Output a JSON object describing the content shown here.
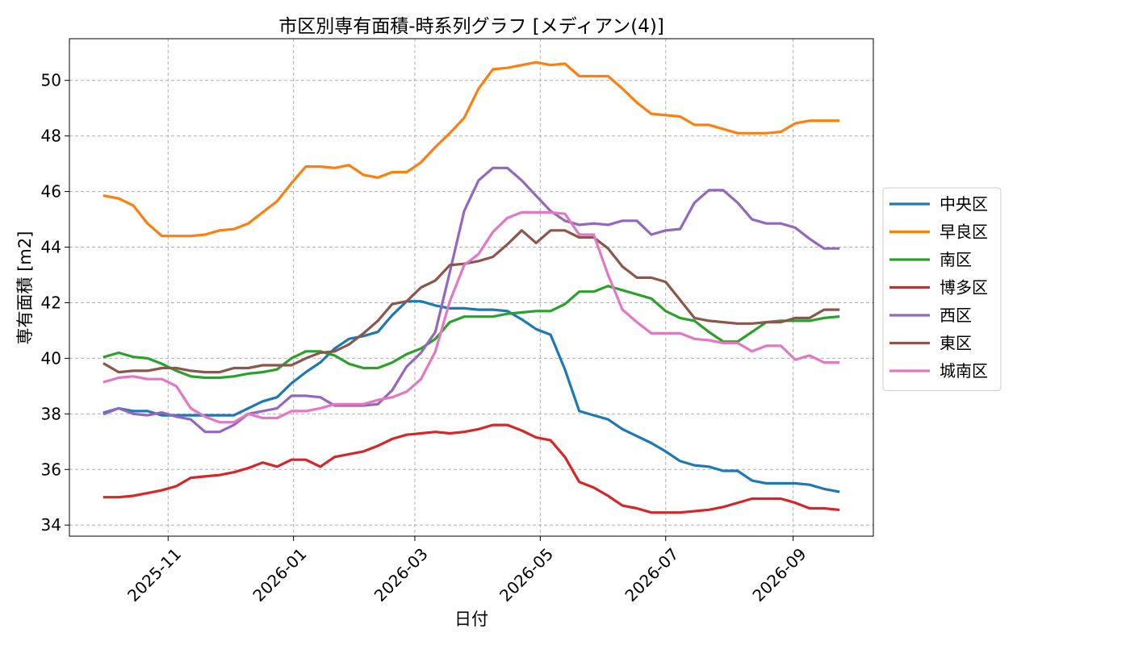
{
  "chart_data": {
    "type": "line",
    "title": "市区別専有面積-時系列グラフ [メディアン(4)]",
    "xlabel": "日付",
    "ylabel": "専有面積 [m2]",
    "ylim": [
      33.6,
      51.5
    ],
    "xlim": [
      "2025-09-14",
      "2026-10-10"
    ],
    "yticks": [
      34,
      36,
      38,
      40,
      42,
      44,
      46,
      48,
      50
    ],
    "xticks": [
      "2025-11-01",
      "2026-01-01",
      "2026-03-01",
      "2026-05-01",
      "2026-07-01",
      "2026-09-01"
    ],
    "xtick_labels": [
      "2025-11",
      "2026-01",
      "2026-03",
      "2026-05",
      "2026-07",
      "2026-09"
    ],
    "grid": true,
    "legend_position": "center-right-outside",
    "x": [
      "2025-10-01",
      "2025-10-08",
      "2025-10-15",
      "2025-10-22",
      "2025-10-29",
      "2025-11-05",
      "2025-11-12",
      "2025-11-19",
      "2025-11-26",
      "2025-12-03",
      "2025-12-10",
      "2025-12-17",
      "2025-12-24",
      "2025-12-31",
      "2026-01-07",
      "2026-01-14",
      "2026-01-21",
      "2026-01-28",
      "2026-02-04",
      "2026-02-11",
      "2026-02-18",
      "2026-02-25",
      "2026-03-04",
      "2026-03-11",
      "2026-03-18",
      "2026-03-25",
      "2026-04-01",
      "2026-04-08",
      "2026-04-15",
      "2026-04-22",
      "2026-04-29",
      "2026-05-06",
      "2026-05-13",
      "2026-05-20",
      "2026-05-27",
      "2026-06-03",
      "2026-06-10",
      "2026-06-17",
      "2026-06-24",
      "2026-07-01",
      "2026-07-08",
      "2026-07-15",
      "2026-07-22",
      "2026-07-29",
      "2026-08-05",
      "2026-08-12",
      "2026-08-19",
      "2026-08-26",
      "2026-09-02",
      "2026-09-09",
      "2026-09-16",
      "2026-09-23"
    ],
    "series": [
      {
        "name": "中央区",
        "color": "#1f77b4",
        "values": [
          38.05,
          38.2,
          38.1,
          38.1,
          37.95,
          37.95,
          37.95,
          37.95,
          37.95,
          37.95,
          38.2,
          38.45,
          38.6,
          39.1,
          39.5,
          39.85,
          40.35,
          40.7,
          40.8,
          40.95,
          41.55,
          42.05,
          42.05,
          41.9,
          41.8,
          41.8,
          41.75,
          41.75,
          41.7,
          41.4,
          41.05,
          40.85,
          39.6,
          38.1,
          37.95,
          37.8,
          37.45,
          37.2,
          36.95,
          36.65,
          36.3,
          36.15,
          36.1,
          35.95,
          35.95,
          35.6,
          35.5,
          35.5,
          35.5,
          35.45,
          35.3,
          35.2
        ]
      },
      {
        "name": "早良区",
        "color": "#ff7f0e",
        "values": [
          45.85,
          45.75,
          45.5,
          44.85,
          44.4,
          44.4,
          44.4,
          44.45,
          44.6,
          44.65,
          44.85,
          45.25,
          45.65,
          46.3,
          46.9,
          46.9,
          46.85,
          46.95,
          46.6,
          46.5,
          46.7,
          46.7,
          47.05,
          47.6,
          48.1,
          48.65,
          49.7,
          50.4,
          50.45,
          50.55,
          50.65,
          50.55,
          50.6,
          50.15,
          50.15,
          50.15,
          49.7,
          49.2,
          48.8,
          48.75,
          48.7,
          48.4,
          48.4,
          48.25,
          48.1,
          48.1,
          48.1,
          48.15,
          48.45,
          48.55,
          48.55,
          48.55
        ]
      },
      {
        "name": "南区",
        "color": "#2ca02c",
        "values": [
          40.05,
          40.2,
          40.05,
          40.0,
          39.8,
          39.55,
          39.35,
          39.3,
          39.3,
          39.35,
          39.45,
          39.5,
          39.6,
          40.0,
          40.25,
          40.25,
          40.1,
          39.8,
          39.65,
          39.65,
          39.85,
          40.15,
          40.35,
          40.7,
          41.3,
          41.5,
          41.5,
          41.5,
          41.6,
          41.65,
          41.7,
          41.7,
          41.95,
          42.4,
          42.4,
          42.6,
          42.45,
          42.3,
          42.15,
          41.7,
          41.45,
          41.35,
          40.95,
          40.6,
          40.6,
          40.95,
          41.3,
          41.35,
          41.35,
          41.35,
          41.45,
          41.5
        ]
      },
      {
        "name": "博多区",
        "color": "#d62728",
        "values": [
          35.0,
          35.0,
          35.05,
          35.15,
          35.25,
          35.4,
          35.7,
          35.75,
          35.8,
          35.9,
          36.05,
          36.25,
          36.1,
          36.35,
          36.35,
          36.1,
          36.45,
          36.55,
          36.65,
          36.85,
          37.1,
          37.25,
          37.3,
          37.35,
          37.3,
          37.35,
          37.45,
          37.6,
          37.6,
          37.4,
          37.15,
          37.05,
          36.45,
          35.55,
          35.35,
          35.05,
          34.7,
          34.6,
          34.45,
          34.45,
          34.45,
          34.5,
          34.55,
          34.65,
          34.8,
          34.95,
          34.95,
          34.95,
          34.8,
          34.6,
          34.6,
          34.55
        ]
      },
      {
        "name": "西区",
        "color": "#9467bd",
        "values": [
          38.0,
          38.2,
          38.0,
          37.95,
          38.05,
          37.9,
          37.8,
          37.35,
          37.35,
          37.6,
          38.0,
          38.1,
          38.2,
          38.65,
          38.65,
          38.6,
          38.3,
          38.3,
          38.3,
          38.35,
          38.85,
          39.7,
          40.2,
          40.95,
          43.1,
          45.3,
          46.4,
          46.85,
          46.85,
          46.4,
          45.85,
          45.3,
          44.95,
          44.8,
          44.85,
          44.8,
          44.95,
          44.95,
          44.45,
          44.6,
          44.65,
          45.6,
          46.05,
          46.05,
          45.6,
          45.0,
          44.85,
          44.85,
          44.7,
          44.3,
          43.95,
          43.95
        ]
      },
      {
        "name": "東区",
        "color": "#8c564b",
        "values": [
          39.8,
          39.5,
          39.55,
          39.55,
          39.65,
          39.65,
          39.55,
          39.5,
          39.5,
          39.65,
          39.65,
          39.75,
          39.75,
          39.75,
          40.0,
          40.2,
          40.25,
          40.5,
          40.9,
          41.35,
          41.95,
          42.05,
          42.55,
          42.8,
          43.35,
          43.4,
          43.5,
          43.65,
          44.1,
          44.6,
          44.15,
          44.6,
          44.6,
          44.35,
          44.35,
          43.95,
          43.3,
          42.9,
          42.9,
          42.75,
          42.1,
          41.45,
          41.35,
          41.3,
          41.25,
          41.25,
          41.3,
          41.3,
          41.45,
          41.45,
          41.75,
          41.75
        ]
      },
      {
        "name": "城南区",
        "color": "#e377c2",
        "values": [
          39.15,
          39.3,
          39.35,
          39.25,
          39.25,
          39.0,
          38.2,
          37.9,
          37.7,
          37.7,
          38.0,
          37.85,
          37.85,
          38.1,
          38.1,
          38.2,
          38.35,
          38.35,
          38.35,
          38.5,
          38.6,
          38.8,
          39.25,
          40.25,
          42.05,
          43.35,
          43.75,
          44.55,
          45.05,
          45.25,
          45.25,
          45.25,
          45.2,
          44.45,
          44.45,
          43.0,
          41.75,
          41.3,
          40.9,
          40.9,
          40.9,
          40.7,
          40.65,
          40.55,
          40.55,
          40.25,
          40.45,
          40.45,
          39.95,
          40.1,
          39.85,
          39.85
        ]
      }
    ]
  }
}
